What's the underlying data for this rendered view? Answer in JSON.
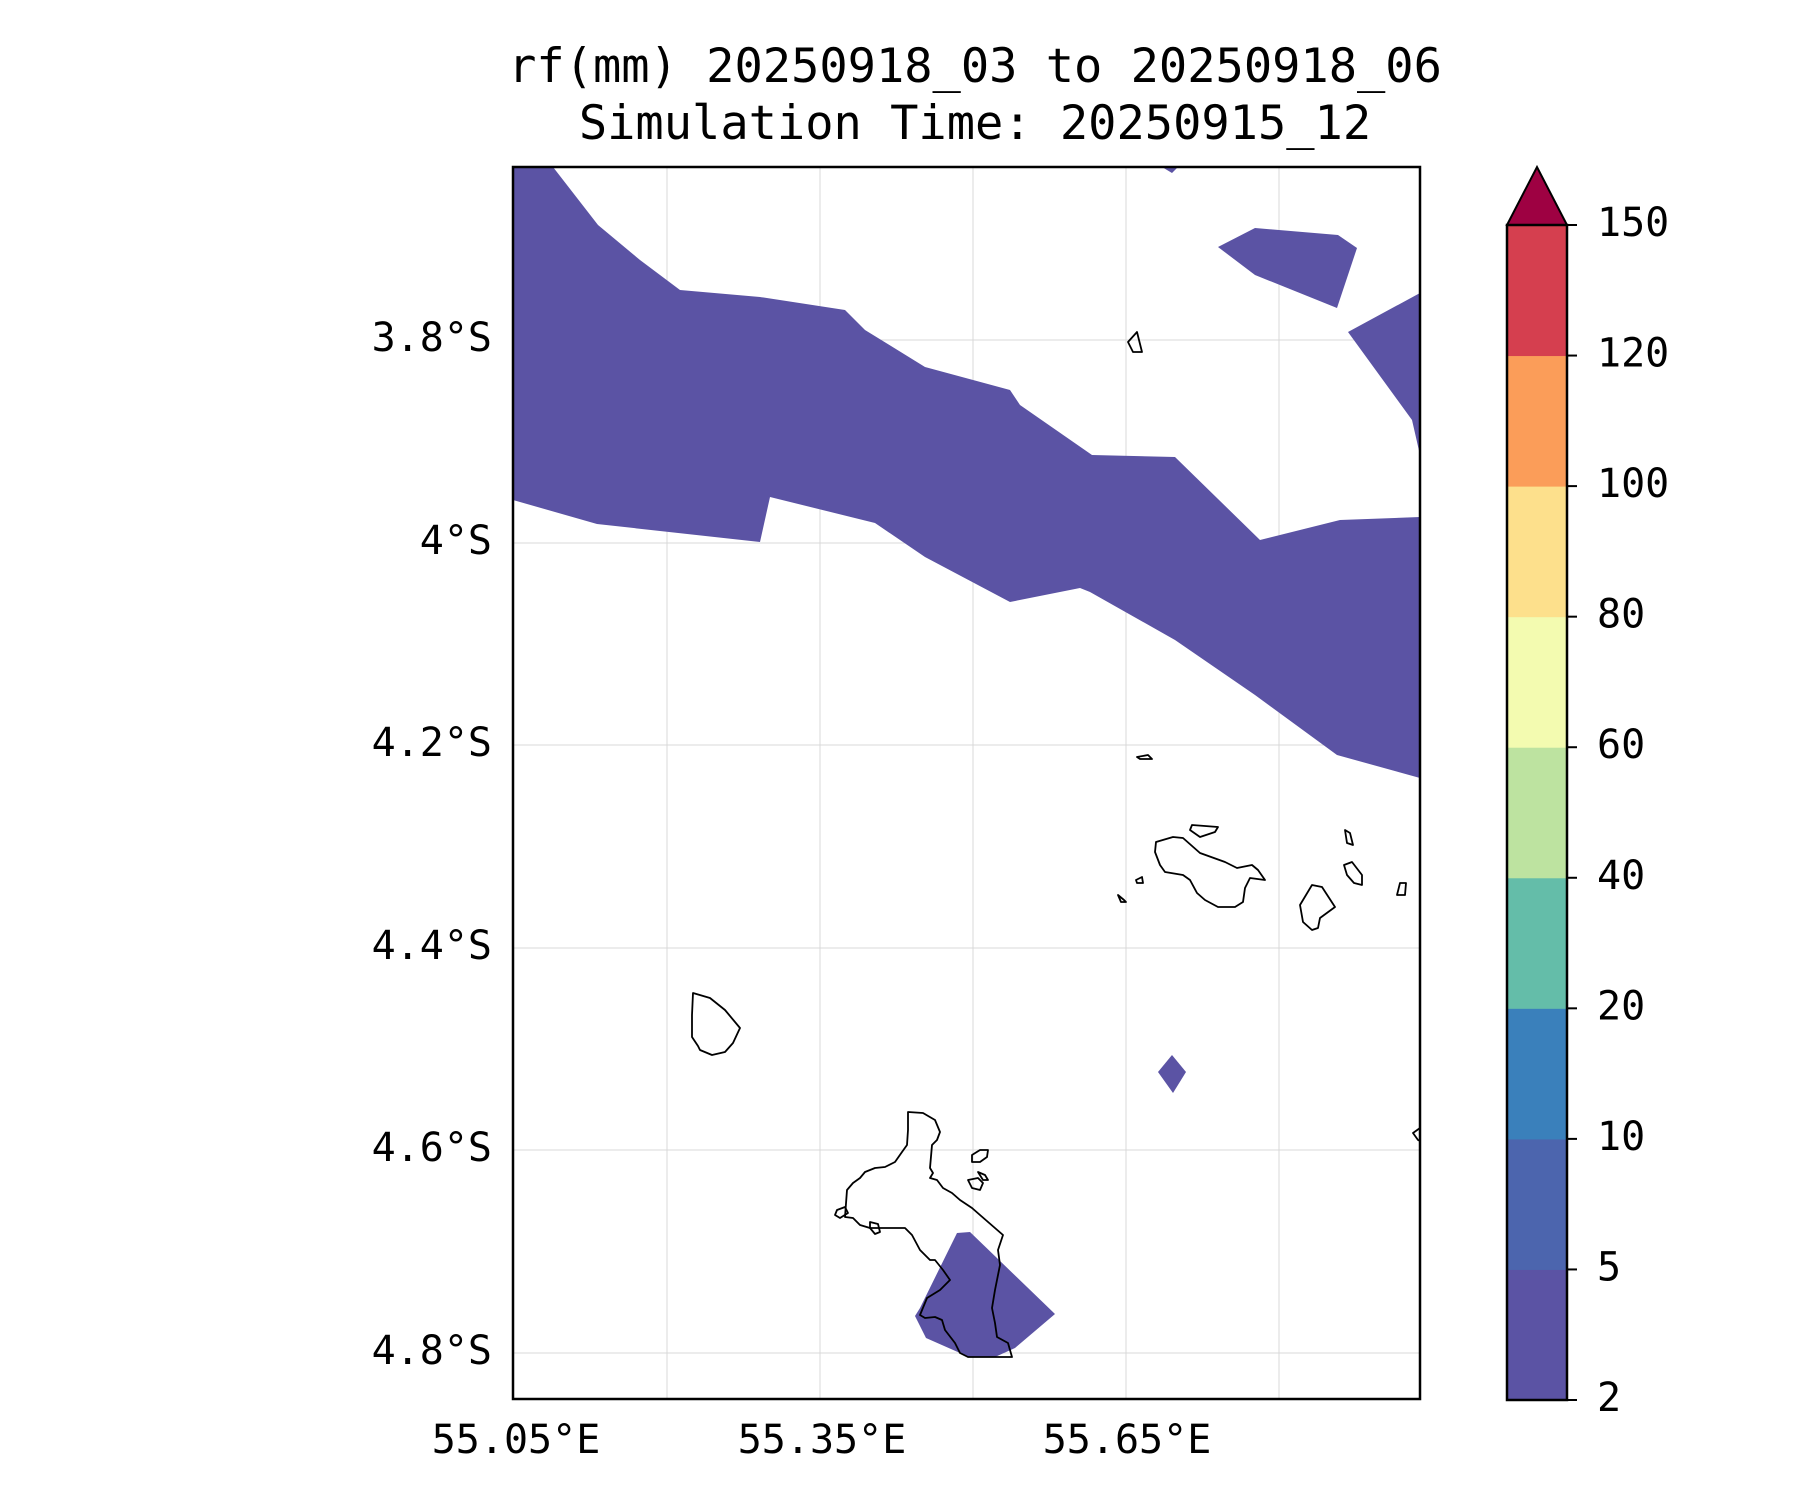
{
  "title": {
    "line1": "rf(mm) 20250918_03 to 20250918_06",
    "line2": "Simulation Time: 20250915_12"
  },
  "axes": {
    "x_ticks": [
      "55.05°E",
      "55.35°E",
      "55.65°E"
    ],
    "y_ticks": [
      "3.8°S",
      "4°S",
      "4.2°S",
      "4.4°S",
      "4.6°S",
      "4.8°S"
    ],
    "gridlines": true
  },
  "colorbar": {
    "levels": [
      "2",
      "5",
      "10",
      "20",
      "40",
      "60",
      "80",
      "100",
      "120",
      "150"
    ],
    "colors": [
      "#5b53a4",
      "#4c65ae",
      "#3a80bb",
      "#64bda9",
      "#bde3a0",
      "#f3fbb0",
      "#fde08c",
      "#fb9d59",
      "#d53f4f",
      "#9e0142"
    ],
    "extend": "max"
  },
  "layers": {
    "rainfall_fill_color": "#5b53a4",
    "coastline_color": "#000000"
  }
}
